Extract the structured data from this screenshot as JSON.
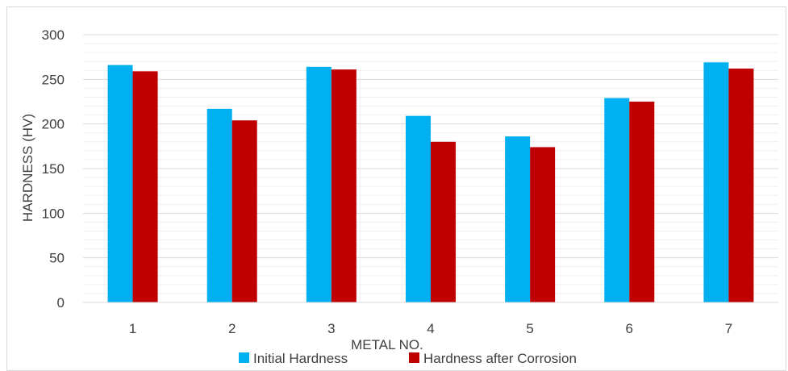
{
  "chart_data": {
    "type": "bar",
    "title": "",
    "xlabel": "METAL NO.",
    "ylabel": "HARDNESS (HV)",
    "categories": [
      "1",
      "2",
      "3",
      "4",
      "5",
      "6",
      "7"
    ],
    "series": [
      {
        "name": "Initial Hardness",
        "values": [
          266,
          217,
          264,
          209,
          186,
          229,
          269
        ],
        "color": "#00b0f0"
      },
      {
        "name": "Hardness after Corrosion",
        "values": [
          259,
          204,
          261,
          180,
          174,
          225,
          262
        ],
        "color": "#c00000"
      }
    ],
    "ylim": [
      0,
      300
    ],
    "yticks": [
      0,
      50,
      100,
      150,
      200,
      250,
      300
    ],
    "grid": true,
    "legend_position": "bottom"
  }
}
